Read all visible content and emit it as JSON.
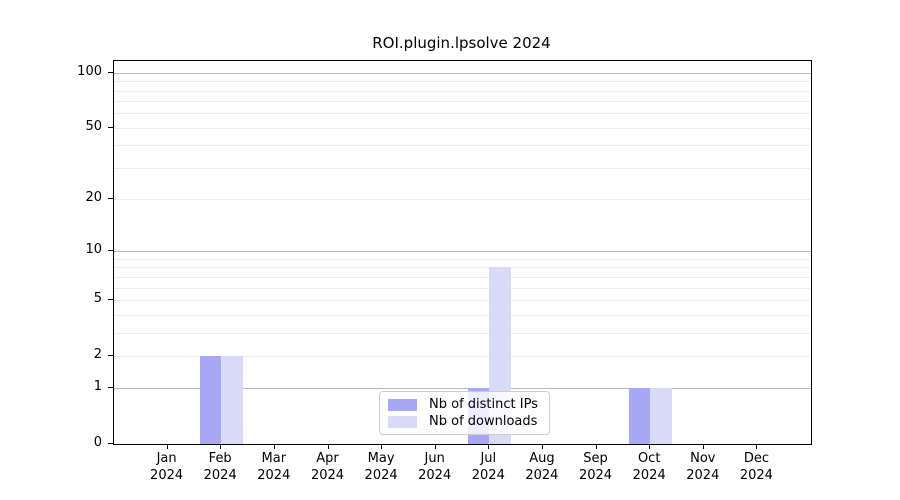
{
  "chart_data": {
    "type": "bar",
    "title": "ROI.plugin.lpsolve 2024",
    "categories": [
      "Jan 2024",
      "Feb 2024",
      "Mar 2024",
      "Apr 2024",
      "May 2024",
      "Jun 2024",
      "Jul 2024",
      "Aug 2024",
      "Sep 2024",
      "Oct 2024",
      "Nov 2024",
      "Dec 2024"
    ],
    "series": [
      {
        "name": "Nb of distinct IPs",
        "color": "#a7a7f4",
        "values": [
          0,
          2,
          0,
          0,
          0,
          0,
          1,
          0,
          0,
          1,
          0,
          0
        ]
      },
      {
        "name": "Nb of downloads",
        "color": "#d9d9f8",
        "values": [
          0,
          2,
          0,
          0,
          0,
          0,
          8,
          0,
          0,
          1,
          0,
          0
        ]
      }
    ],
    "xlabel": "",
    "ylabel": "",
    "yscale": "log1p",
    "ylim": [
      0,
      116
    ],
    "y_ticks": [
      0,
      1,
      2,
      5,
      10,
      20,
      50,
      100
    ],
    "y_grid_major": [
      1,
      10,
      100
    ],
    "y_grid_minor": [
      2,
      3,
      4,
      5,
      6,
      7,
      8,
      9,
      20,
      30,
      40,
      50,
      60,
      70,
      80,
      90
    ],
    "grid": true,
    "legend_position": "lower center",
    "bar_width_fraction": 0.4
  },
  "colors": {
    "distinct_ips": "#a7a7f4",
    "downloads": "#d9d9f8",
    "grid_major": "#b9b9b9",
    "grid_minor": "#ececec",
    "spine": "#000000",
    "legend_border": "#cccccc"
  }
}
